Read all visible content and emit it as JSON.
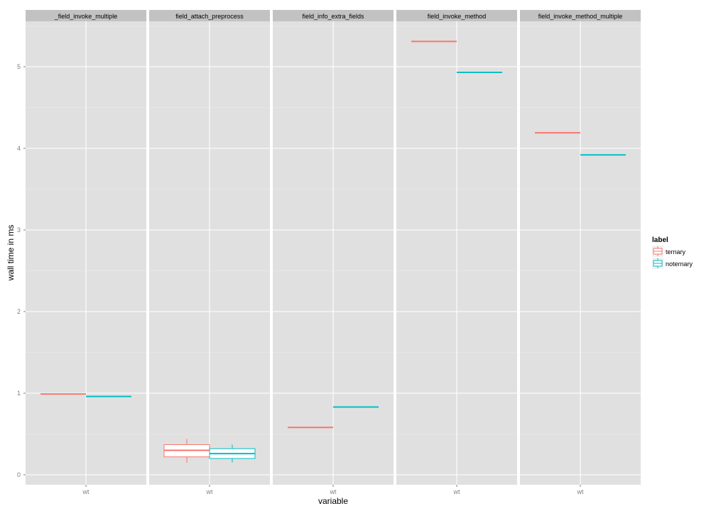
{
  "chart_data": {
    "type": "box",
    "xlabel": "variable",
    "ylabel": "wall time in ms",
    "ylim": [
      -0.12,
      5.68
    ],
    "yticks": [
      0,
      1,
      2,
      3,
      4,
      5
    ],
    "x_category": "wt",
    "legend": {
      "title": "label",
      "placement": "right",
      "entries": [
        "ternary",
        "noternary"
      ]
    },
    "colors": {
      "ternary": "#F8766D",
      "noternary": "#00BFC4"
    },
    "grid": true,
    "facets": [
      {
        "name": "_field_invoke_multiple",
        "ternary": {
          "min": 0.99,
          "q1": 0.99,
          "median": 0.99,
          "q3": 0.99,
          "max": 0.99
        },
        "noternary": {
          "min": 0.96,
          "q1": 0.96,
          "median": 0.96,
          "q3": 0.96,
          "max": 0.96
        }
      },
      {
        "name": "field_attach_preprocess",
        "ternary": {
          "min": 0.15,
          "q1": 0.22,
          "median": 0.3,
          "q3": 0.37,
          "max": 0.44
        },
        "noternary": {
          "min": 0.15,
          "q1": 0.2,
          "median": 0.26,
          "q3": 0.32,
          "max": 0.37
        }
      },
      {
        "name": "field_info_extra_fields",
        "ternary": {
          "min": 0.58,
          "q1": 0.58,
          "median": 0.58,
          "q3": 0.58,
          "max": 0.58
        },
        "noternary": {
          "min": 0.83,
          "q1": 0.83,
          "median": 0.83,
          "q3": 0.83,
          "max": 0.83
        }
      },
      {
        "name": "field_invoke_method",
        "ternary": {
          "min": 5.31,
          "q1": 5.31,
          "median": 5.31,
          "q3": 5.31,
          "max": 5.31
        },
        "noternary": {
          "min": 4.93,
          "q1": 4.93,
          "median": 4.93,
          "q3": 4.93,
          "max": 4.93
        }
      },
      {
        "name": "field_invoke_method_multiple",
        "ternary": {
          "min": 4.19,
          "q1": 4.19,
          "median": 4.19,
          "q3": 4.19,
          "max": 4.19
        },
        "noternary": {
          "min": 3.92,
          "q1": 3.92,
          "median": 3.92,
          "q3": 3.92,
          "max": 3.92
        }
      }
    ]
  }
}
